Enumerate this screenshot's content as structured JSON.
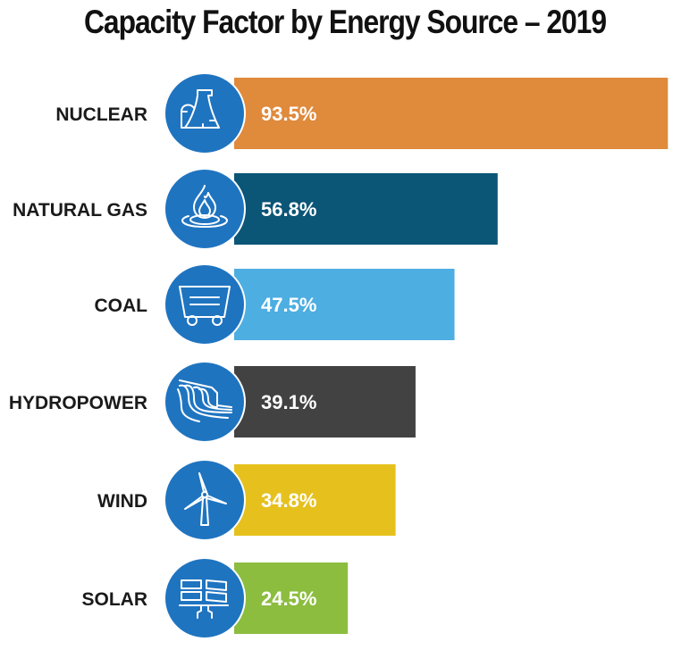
{
  "chart_data": {
    "type": "bar",
    "orientation": "horizontal",
    "title": "Capacity Factor by Energy Source – 2019",
    "xlabel": "",
    "ylabel": "",
    "xlim": [
      0,
      100
    ],
    "grid": false,
    "legend": "none",
    "categories": [
      "NUCLEAR",
      "NATURAL GAS",
      "COAL",
      "HYDROPOWER",
      "WIND",
      "SOLAR"
    ],
    "values": [
      93.5,
      56.8,
      47.5,
      39.1,
      34.8,
      24.5
    ],
    "value_labels": [
      "93.5%",
      "56.8%",
      "47.5%",
      "39.1%",
      "34.8%",
      "24.5%"
    ],
    "unit": "%",
    "bar_colors": [
      "#e08a3c",
      "#0b5577",
      "#4daee2",
      "#424242",
      "#e6c11e",
      "#8cbd3f"
    ],
    "icons": [
      "cooling-tower-icon",
      "gas-flame-icon",
      "coal-cart-icon",
      "dam-waterfall-icon",
      "wind-turbine-icon",
      "solar-panel-icon"
    ],
    "icon_circle_color": "#1f74c0"
  }
}
